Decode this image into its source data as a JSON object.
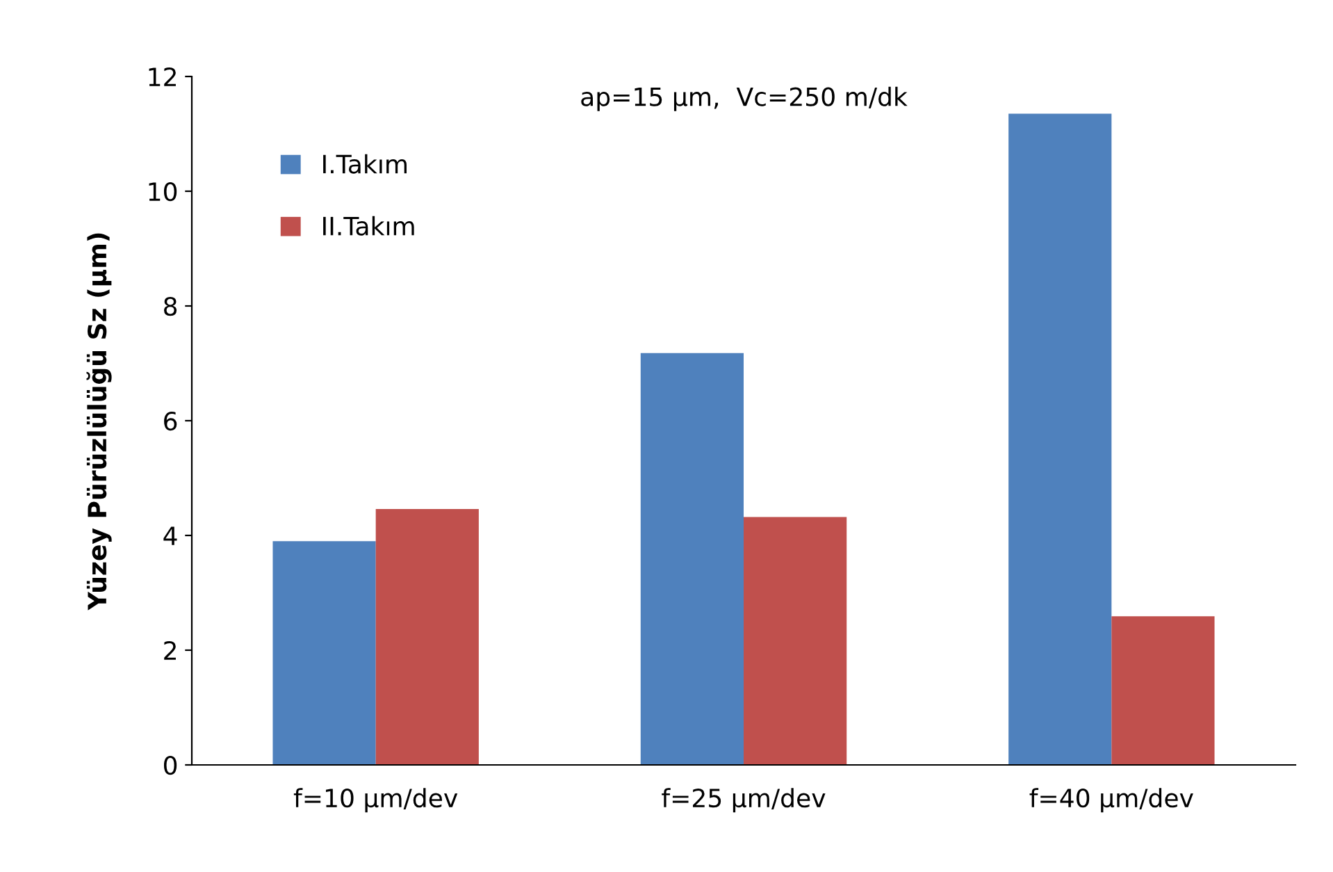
{
  "chart_data": {
    "type": "bar",
    "title": "ap=15 µm,  Vc=250 m/dk",
    "ylabel": "Yüzey Pürüzlülüğü Sz (µm)",
    "categories": [
      "f=10 µm/dev",
      "f=25 µm/dev",
      "f=40 µm/dev"
    ],
    "series": [
      {
        "name": "I.Takım",
        "color": "#4f81bd",
        "values": [
          3.9,
          7.18,
          11.35
        ]
      },
      {
        "name": "II.Takım",
        "color": "#c0504d",
        "values": [
          4.46,
          4.32,
          2.59
        ]
      }
    ],
    "ylim": [
      0,
      12
    ],
    "yticks": [
      0,
      2,
      4,
      6,
      8,
      10,
      12
    ],
    "grid": false,
    "legend": "top left"
  }
}
